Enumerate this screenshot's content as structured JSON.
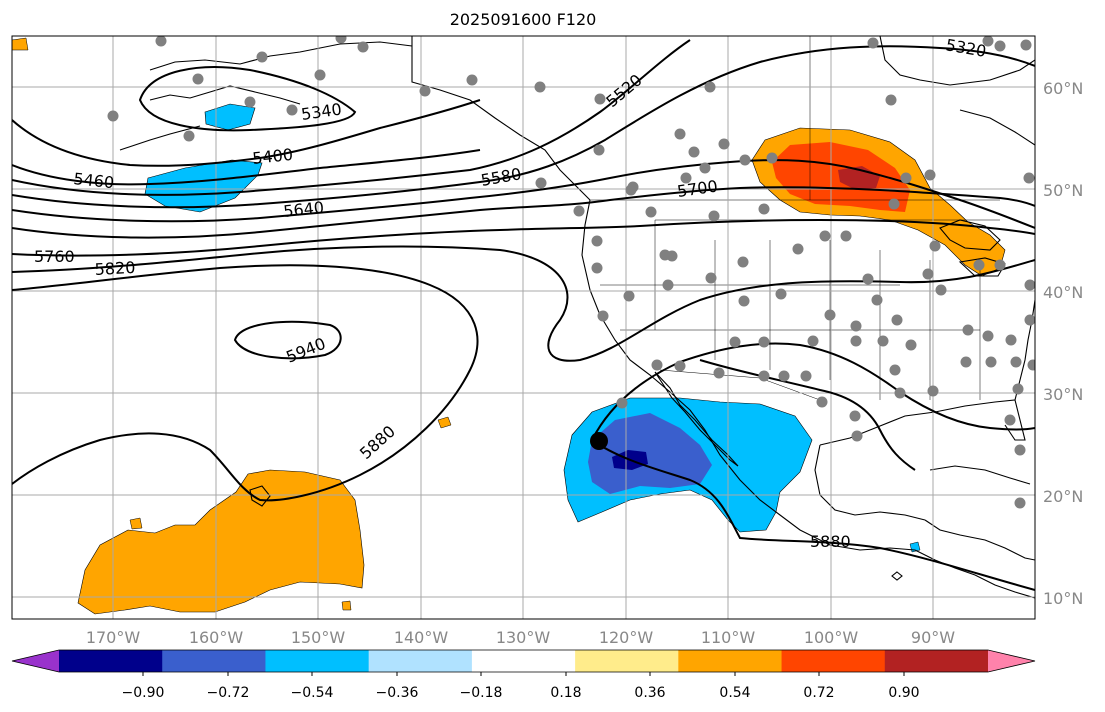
{
  "title": "2025091600 F120",
  "longitude_labels": [
    "170°W",
    "160°W",
    "150°W",
    "140°W",
    "130°W",
    "120°W",
    "110°W",
    "100°W",
    "90°W"
  ],
  "latitude_labels": [
    "60°N",
    "50°N",
    "40°N",
    "30°N",
    "20°N",
    "10°N"
  ],
  "contour_labels": [
    "5340",
    "5400",
    "5460",
    "5520",
    "5580",
    "5640",
    "5700",
    "5760",
    "5820",
    "5880",
    "5940",
    "5880",
    "5320"
  ],
  "colorbar": {
    "ticks": [
      "−0.90",
      "−0.72",
      "−0.54",
      "−0.36",
      "−0.18",
      "0.18",
      "0.36",
      "0.54",
      "0.72",
      "0.90"
    ],
    "colors": [
      "#9932cc",
      "#00008b",
      "#3a5fcd",
      "#00bfff",
      "#b0e2ff",
      "#ffffff",
      "#ffec8b",
      "#ffa500",
      "#ff4500",
      "#b22222",
      "#ff82ab"
    ]
  },
  "stations": 60
}
